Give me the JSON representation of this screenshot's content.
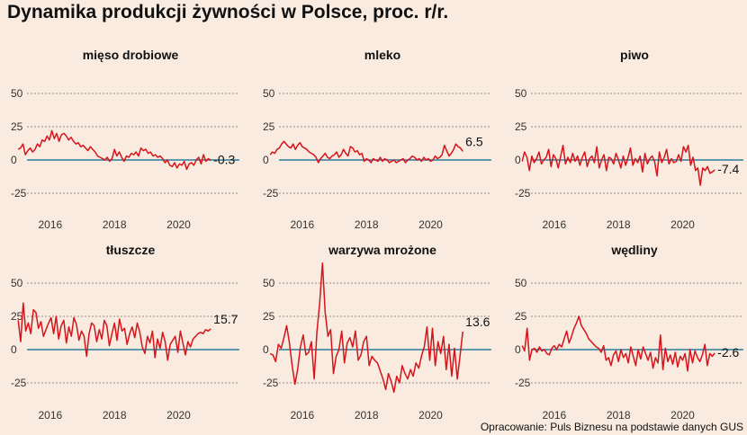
{
  "title": "Dynamika produkcji żywności w Polsce, proc. r/r.",
  "source": "Opracowanie: Puls Biznesu na podstawie danych GUS",
  "colors": {
    "background": "#f9ebdf",
    "line": "#d7141b",
    "zero_line": "#2a7d9c",
    "grid": "#6f6f6f",
    "text": "#111111"
  },
  "chart_data": [
    {
      "type": "line",
      "title": "mięso drobiowe",
      "last_label": "-0.3",
      "ylim": [
        -35,
        60
      ],
      "yticks": [
        50,
        25,
        0,
        -25
      ],
      "xlim": [
        2015.5,
        2021.5
      ],
      "xticks": [
        2016,
        2018,
        2020
      ],
      "x_start": 2015.0,
      "x_step": 0.0833,
      "values": [
        8,
        9,
        12,
        4,
        7,
        9,
        6,
        8,
        12,
        10,
        15,
        14,
        18,
        15,
        22,
        16,
        20,
        14,
        19,
        20,
        18,
        15,
        17,
        14,
        12,
        13,
        10,
        11,
        9,
        7,
        10,
        8,
        6,
        3,
        2,
        1,
        0,
        2,
        -1,
        1,
        8,
        3,
        6,
        2,
        -1,
        3,
        2,
        5,
        4,
        6,
        3,
        9,
        7,
        8,
        5,
        6,
        3,
        4,
        2,
        3,
        1,
        -2,
        0,
        -4,
        -5,
        -2,
        -6,
        -3,
        -4,
        -1,
        -7,
        -3,
        -2,
        -4,
        0,
        2,
        -3,
        4,
        -1,
        1,
        -0.3
      ]
    },
    {
      "type": "line",
      "title": "mleko",
      "last_label": "6.5",
      "ylim": [
        -35,
        60
      ],
      "yticks": [
        50,
        25,
        0,
        -25
      ],
      "xlim": [
        2015.5,
        2021.5
      ],
      "xticks": [
        2016,
        2018,
        2020
      ],
      "x_start": 2015.0,
      "x_step": 0.0833,
      "values": [
        4,
        6,
        5,
        8,
        9,
        12,
        14,
        12,
        10,
        9,
        12,
        8,
        11,
        13,
        10,
        9,
        8,
        6,
        5,
        4,
        2,
        -2,
        1,
        3,
        5,
        2,
        1,
        3,
        4,
        6,
        2,
        4,
        8,
        5,
        3,
        10,
        9,
        6,
        7,
        4,
        5,
        -1,
        1,
        0,
        -2,
        1,
        0,
        -1,
        2,
        -1,
        1,
        0,
        -2,
        -1,
        0,
        -2,
        -1,
        0,
        1,
        -2,
        0,
        1,
        3,
        2,
        0,
        1,
        -1,
        2,
        0,
        1,
        -1,
        0,
        3,
        1,
        2,
        4,
        11,
        7,
        3,
        5,
        8,
        12,
        10,
        9,
        6.5
      ]
    },
    {
      "type": "line",
      "title": "piwo",
      "last_label": "-7.4",
      "ylim": [
        -35,
        60
      ],
      "yticks": [
        50,
        25,
        0,
        -25
      ],
      "xlim": [
        2015.5,
        2021.5
      ],
      "xticks": [
        2016,
        2018,
        2020
      ],
      "x_start": 2015.0,
      "x_step": 0.0833,
      "values": [
        -1,
        6,
        2,
        -8,
        3,
        -2,
        1,
        6,
        -3,
        0,
        2,
        8,
        -5,
        4,
        1,
        -6,
        3,
        11,
        -3,
        2,
        -2,
        5,
        -1,
        3,
        -4,
        2,
        6,
        -5,
        1,
        3,
        -2,
        10,
        -6,
        0,
        4,
        -8,
        2,
        1,
        -3,
        5,
        0,
        -6,
        3,
        -4,
        2,
        9,
        -4,
        1,
        -2,
        3,
        -9,
        5,
        -3,
        1,
        3,
        -1,
        -12,
        6,
        -2,
        2,
        8,
        -3,
        1,
        -2,
        -1,
        4,
        -1,
        10,
        6,
        11,
        -4,
        2,
        -8,
        -6,
        -19,
        -6,
        -8,
        -5,
        -10,
        -9,
        -7.4
      ]
    },
    {
      "type": "line",
      "title": "tłuszcze",
      "last_label": "15.7",
      "ylim": [
        -35,
        60
      ],
      "yticks": [
        50,
        25,
        0,
        -25
      ],
      "xlim": [
        2015.5,
        2021.5
      ],
      "xticks": [
        2016,
        2018,
        2020
      ],
      "x_start": 2015.0,
      "x_step": 0.0833,
      "values": [
        22,
        6,
        35,
        14,
        20,
        12,
        30,
        28,
        16,
        21,
        10,
        15,
        20,
        24,
        12,
        25,
        8,
        18,
        22,
        5,
        17,
        10,
        24,
        19,
        7,
        14,
        10,
        -5,
        12,
        20,
        18,
        6,
        15,
        8,
        22,
        18,
        3,
        12,
        20,
        7,
        23,
        14,
        16,
        4,
        12,
        17,
        9,
        20,
        13,
        2,
        -3,
        10,
        5,
        14,
        -6,
        8,
        1,
        13,
        6,
        -8,
        4,
        7,
        10,
        -2,
        14,
        5,
        -4,
        6,
        2,
        8,
        10,
        12,
        13,
        12,
        15,
        14,
        15.7
      ]
    },
    {
      "type": "line",
      "title": "warzywa mrożone",
      "last_label": "13.6",
      "ylim": [
        -35,
        70
      ],
      "yticks": [
        50,
        25,
        0,
        -25
      ],
      "xlim": [
        2015.5,
        2021.5
      ],
      "xticks": [
        2016,
        2018,
        2020
      ],
      "x_start": 2015.0,
      "x_step": 0.0833,
      "values": [
        -3,
        -4,
        -9,
        4,
        1,
        9,
        18,
        5,
        -12,
        -26,
        -15,
        2,
        11,
        -4,
        -2,
        6,
        -22,
        13,
        35,
        65,
        28,
        10,
        15,
        -18,
        -5,
        0,
        14,
        -10,
        5,
        9,
        2,
        14,
        -8,
        -4,
        6,
        10,
        -12,
        -5,
        -8,
        -10,
        -16,
        -22,
        -30,
        -18,
        -24,
        -32,
        -20,
        -25,
        -12,
        -18,
        -22,
        -15,
        -20,
        -10,
        -14,
        -5,
        2,
        17,
        -8,
        16,
        -12,
        6,
        -3,
        10,
        -15,
        4,
        -20,
        1,
        -22,
        -5,
        13.6
      ]
    },
    {
      "type": "line",
      "title": "wędliny",
      "last_label": "-2.6",
      "ylim": [
        -35,
        60
      ],
      "yticks": [
        50,
        25,
        0,
        -25
      ],
      "xlim": [
        2015.5,
        2021.5
      ],
      "xticks": [
        2016,
        2018,
        2020
      ],
      "x_start": 2015.0,
      "x_step": 0.0833,
      "values": [
        3,
        -1,
        16,
        -8,
        0,
        1,
        -2,
        2,
        -1,
        0,
        -3,
        -4,
        1,
        3,
        0,
        4,
        2,
        8,
        14,
        5,
        10,
        16,
        20,
        25,
        18,
        15,
        12,
        8,
        6,
        4,
        2,
        1,
        -2,
        3,
        -8,
        -6,
        -12,
        -4,
        -1,
        -9,
        0,
        -6,
        -3,
        -10,
        2,
        -5,
        -12,
        0,
        -7,
        2,
        -3,
        -8,
        -2,
        -14,
        -6,
        -10,
        11,
        -15,
        1,
        -9,
        -4,
        -11,
        -2,
        -13,
        -5,
        -8,
        -3,
        -16,
        0,
        -10,
        -1,
        -6,
        -9,
        -4,
        4,
        -12,
        -3,
        -5,
        -2.6
      ]
    }
  ]
}
